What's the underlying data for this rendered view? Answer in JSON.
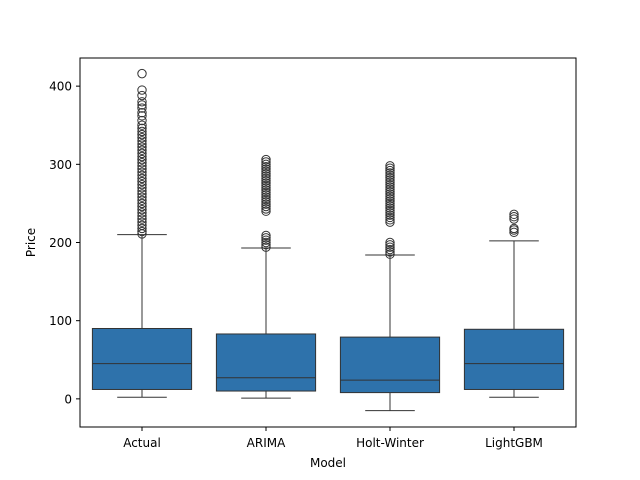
{
  "chart_data": {
    "type": "box",
    "title": "",
    "xlabel": "Model",
    "ylabel": "Price",
    "ylim": [
      -36,
      436
    ],
    "yticks": [
      0,
      100,
      200,
      300,
      400
    ],
    "grid": false,
    "legend": "none",
    "box_color": "#2e72ab",
    "line_color": "#333333",
    "categories": [
      "Actual",
      "ARIMA",
      "Holt-Winter",
      "LightGBM"
    ],
    "boxes": [
      {
        "name": "Actual",
        "whisker_low": 2,
        "q1": 12,
        "median": 45,
        "q3": 90,
        "whisker_high": 210,
        "outliers": [
          211,
          214,
          218,
          222,
          226,
          230,
          234,
          238,
          242,
          246,
          250,
          254,
          258,
          262,
          266,
          270,
          274,
          278,
          282,
          286,
          290,
          294,
          298,
          302,
          306,
          310,
          314,
          318,
          322,
          326,
          330,
          334,
          338,
          342,
          346,
          350,
          356,
          362,
          366,
          372,
          376,
          380,
          388,
          395,
          416
        ]
      },
      {
        "name": "ARIMA",
        "whisker_low": 1,
        "q1": 10,
        "median": 27,
        "q3": 83,
        "whisker_high": 193,
        "outliers": [
          194,
          197,
          200,
          203,
          206,
          209,
          240,
          243,
          246,
          249,
          252,
          255,
          258,
          261,
          264,
          267,
          270,
          273,
          276,
          279,
          282,
          285,
          288,
          291,
          294,
          297,
          300,
          303,
          306
        ]
      },
      {
        "name": "Holt-Winter",
        "whisker_low": -15,
        "q1": 8,
        "median": 24,
        "q3": 79,
        "whisker_high": 184,
        "outliers": [
          185,
          188,
          191,
          194,
          197,
          200,
          226,
          229,
          232,
          235,
          238,
          241,
          244,
          247,
          250,
          253,
          256,
          259,
          262,
          265,
          268,
          271,
          274,
          277,
          280,
          283,
          286,
          289,
          292,
          295,
          298
        ]
      },
      {
        "name": "LightGBM",
        "whisker_low": 2,
        "q1": 12,
        "median": 45,
        "q3": 89,
        "whisker_high": 202,
        "outliers": [
          213,
          216,
          218,
          230,
          233,
          236
        ]
      }
    ]
  }
}
